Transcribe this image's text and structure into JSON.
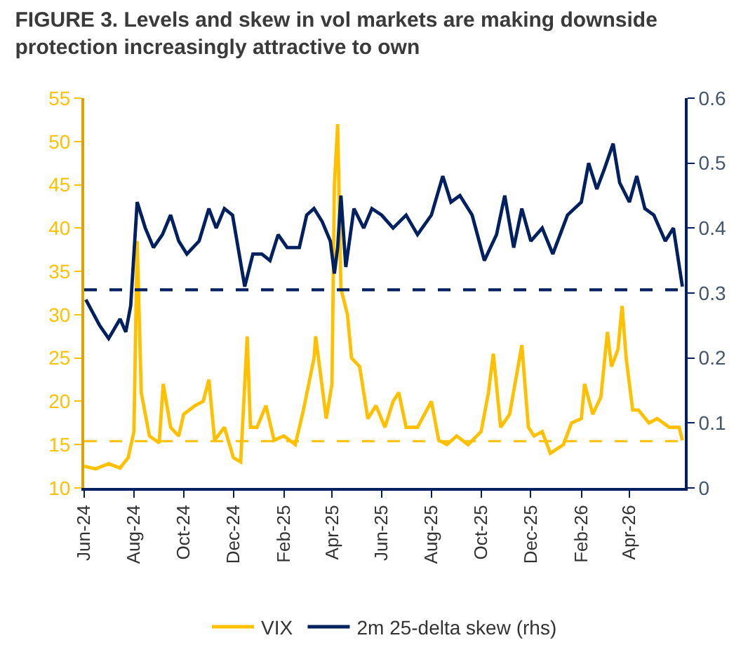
{
  "chart_data": {
    "type": "line",
    "title": "FIGURE 3. Levels and skew in vol markets are making downside protection increasingly attractive to own",
    "series": [
      {
        "name": "VIX",
        "color": "#ffc000",
        "x": [
          "2024-06-01",
          "2024-06-15",
          "2024-07-01",
          "2024-07-15",
          "2024-07-25",
          "2024-08-01",
          "2024-08-05",
          "2024-08-10",
          "2024-08-20",
          "2024-09-01",
          "2024-09-06",
          "2024-09-15",
          "2024-09-25",
          "2024-10-01",
          "2024-10-15",
          "2024-10-25",
          "2024-11-01",
          "2024-11-08",
          "2024-11-20",
          "2024-12-01",
          "2024-12-10",
          "2024-12-18",
          "2024-12-22",
          "2024-12-30",
          "2025-01-10",
          "2025-01-20",
          "2025-02-01",
          "2025-02-15",
          "2025-02-25",
          "2025-03-10",
          "2025-03-12",
          "2025-03-25",
          "2025-04-01",
          "2025-04-04",
          "2025-04-08",
          "2025-04-12",
          "2025-04-20",
          "2025-04-25",
          "2025-05-05",
          "2025-05-15",
          "2025-05-25",
          "2025-06-05",
          "2025-06-15",
          "2025-06-22",
          "2025-07-01",
          "2025-07-15",
          "2025-08-01",
          "2025-08-10",
          "2025-08-20",
          "2025-09-01",
          "2025-09-15",
          "2025-10-01",
          "2025-10-10",
          "2025-10-16",
          "2025-10-25",
          "2025-11-05",
          "2025-11-20",
          "2025-11-28",
          "2025-12-05",
          "2025-12-15",
          "2025-12-25",
          "2026-01-10",
          "2026-01-20",
          "2026-02-01",
          "2026-02-05",
          "2026-02-15",
          "2026-02-25",
          "2026-03-05",
          "2026-03-10",
          "2026-03-18",
          "2026-03-23",
          "2026-03-28",
          "2026-04-05",
          "2026-04-12",
          "2026-04-25",
          "2026-05-05",
          "2026-05-20",
          "2026-06-01",
          "2026-06-05"
        ],
        "values": [
          12.5,
          12.2,
          12.8,
          12.3,
          13.5,
          16.5,
          38.5,
          21,
          16,
          15.2,
          22,
          17,
          16,
          18.5,
          19.5,
          20,
          22.5,
          15.5,
          17,
          13.5,
          13,
          27.5,
          17,
          17,
          19.5,
          15.5,
          16,
          15,
          19,
          25,
          27.5,
          18,
          22,
          45,
          52,
          33,
          30,
          25,
          24,
          18,
          19.5,
          17,
          20,
          21,
          17,
          17,
          20,
          15.5,
          15,
          16,
          15,
          16.5,
          21,
          25.5,
          17,
          18.5,
          26.5,
          17,
          16,
          16.5,
          14,
          15,
          17.5,
          18,
          22,
          18.5,
          20.5,
          28,
          24,
          26,
          31,
          25,
          19,
          19,
          17.5,
          18,
          17,
          17,
          15.5
        ]
      },
      {
        "name": "2m 25-delta skew (rhs)",
        "color": "#002060",
        "axis": "y2",
        "x": [
          "2024-06-03",
          "2024-06-20",
          "2024-07-01",
          "2024-07-15",
          "2024-07-22",
          "2024-07-28",
          "2024-08-05",
          "2024-08-15",
          "2024-08-25",
          "2024-09-05",
          "2024-09-15",
          "2024-09-25",
          "2024-10-05",
          "2024-10-20",
          "2024-11-01",
          "2024-11-10",
          "2024-11-20",
          "2024-11-30",
          "2024-12-15",
          "2024-12-25",
          "2025-01-05",
          "2025-01-15",
          "2025-01-25",
          "2025-02-05",
          "2025-02-20",
          "2025-03-01",
          "2025-03-10",
          "2025-03-20",
          "2025-03-30",
          "2025-04-04",
          "2025-04-08",
          "2025-04-12",
          "2025-04-18",
          "2025-04-28",
          "2025-05-10",
          "2025-05-20",
          "2025-06-01",
          "2025-06-15",
          "2025-07-01",
          "2025-07-15",
          "2025-08-01",
          "2025-08-15",
          "2025-08-25",
          "2025-09-05",
          "2025-09-20",
          "2025-10-05",
          "2025-10-20",
          "2025-10-30",
          "2025-11-10",
          "2025-11-20",
          "2025-12-01",
          "2025-12-15",
          "2025-12-28",
          "2026-01-15",
          "2026-02-01",
          "2026-02-10",
          "2026-02-20",
          "2026-03-01",
          "2026-03-12",
          "2026-03-20",
          "2026-04-01",
          "2026-04-10",
          "2026-04-20",
          "2026-05-01",
          "2026-05-15",
          "2026-05-25",
          "2026-06-05"
        ],
        "values": [
          0.29,
          0.25,
          0.23,
          0.26,
          0.24,
          0.28,
          0.44,
          0.4,
          0.37,
          0.39,
          0.42,
          0.38,
          0.36,
          0.38,
          0.43,
          0.4,
          0.43,
          0.42,
          0.31,
          0.36,
          0.36,
          0.35,
          0.39,
          0.37,
          0.37,
          0.42,
          0.43,
          0.41,
          0.38,
          0.33,
          0.37,
          0.45,
          0.34,
          0.43,
          0.4,
          0.43,
          0.42,
          0.4,
          0.42,
          0.39,
          0.42,
          0.48,
          0.44,
          0.45,
          0.42,
          0.35,
          0.39,
          0.45,
          0.37,
          0.43,
          0.38,
          0.4,
          0.36,
          0.42,
          0.44,
          0.5,
          0.46,
          0.49,
          0.53,
          0.47,
          0.44,
          0.48,
          0.43,
          0.42,
          0.38,
          0.4,
          0.31
        ]
      }
    ],
    "xlim": [
      "2024-06-01",
      "2026-06-08"
    ],
    "xticks": [
      {
        "value": "2024-06-01",
        "label": "Jun-24"
      },
      {
        "value": "2024-08-01",
        "label": "Aug-24"
      },
      {
        "value": "2024-10-01",
        "label": "Oct-24"
      },
      {
        "value": "2024-12-01",
        "label": "Dec-24"
      },
      {
        "value": "2025-02-01",
        "label": "Feb-25"
      },
      {
        "value": "2025-04-01",
        "label": "Apr-25"
      },
      {
        "value": "2025-06-01",
        "label": "Jun-25"
      },
      {
        "value": "2025-08-01",
        "label": "Aug-25"
      },
      {
        "value": "2025-10-01",
        "label": "Oct-25"
      },
      {
        "value": "2025-12-01",
        "label": "Dec-25"
      },
      {
        "value": "2026-02-01",
        "label": "Feb-26"
      },
      {
        "value": "2026-04-01",
        "label": "Apr-26"
      }
    ],
    "ylim": [
      10,
      55
    ],
    "yticks": [
      10,
      15,
      20,
      25,
      30,
      35,
      40,
      45,
      50,
      55
    ],
    "y2lim": [
      0,
      0.6
    ],
    "y2ticks": [
      0,
      0.1,
      0.2,
      0.3,
      0.4,
      0.5,
      0.6
    ],
    "ref_lines": [
      {
        "axis": "y",
        "value": 15.4,
        "color": "#ffc000",
        "line_style": "dashed"
      },
      {
        "axis": "y2",
        "value": 0.305,
        "color": "#002060",
        "line_style": "dashed"
      }
    ],
    "grid": false,
    "legend": "bottom",
    "marker": "none",
    "line_style": "solid"
  }
}
